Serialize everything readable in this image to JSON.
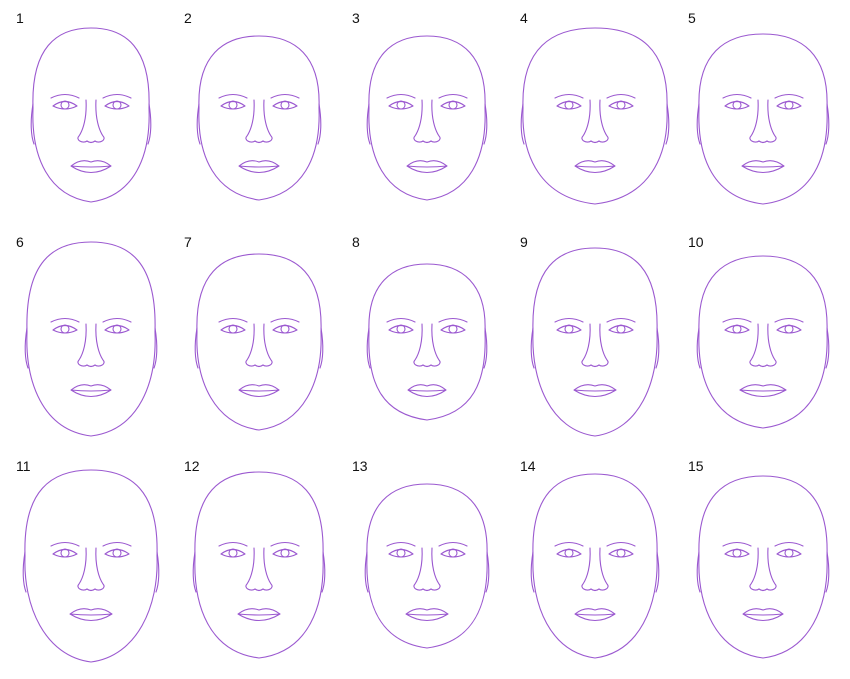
{
  "figure": {
    "line_color": "#9b59d0",
    "faces": [
      {
        "label": "1"
      },
      {
        "label": "2"
      },
      {
        "label": "3"
      },
      {
        "label": "4"
      },
      {
        "label": "5"
      },
      {
        "label": "6"
      },
      {
        "label": "7"
      },
      {
        "label": "8"
      },
      {
        "label": "9"
      },
      {
        "label": "10"
      },
      {
        "label": "11"
      },
      {
        "label": "12"
      },
      {
        "label": "13"
      },
      {
        "label": "14"
      },
      {
        "label": "15"
      }
    ]
  }
}
